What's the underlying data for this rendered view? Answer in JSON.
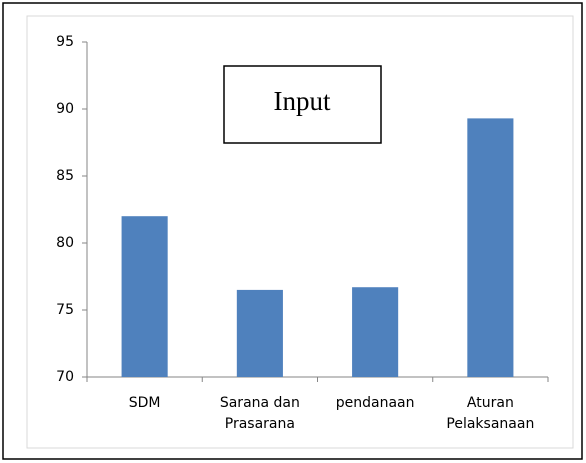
{
  "chart_data": {
    "type": "bar",
    "title": "Input",
    "categories": [
      "SDM",
      "Sarana dan Prasarana",
      "pendanaan",
      "Aturan Pelaksanaan"
    ],
    "values": [
      82,
      76.5,
      76.7,
      89.3
    ],
    "color": "#4f81bd",
    "ylim": [
      70,
      95
    ],
    "yticks": [
      70,
      75,
      80,
      85,
      90,
      95
    ],
    "grid": false
  }
}
